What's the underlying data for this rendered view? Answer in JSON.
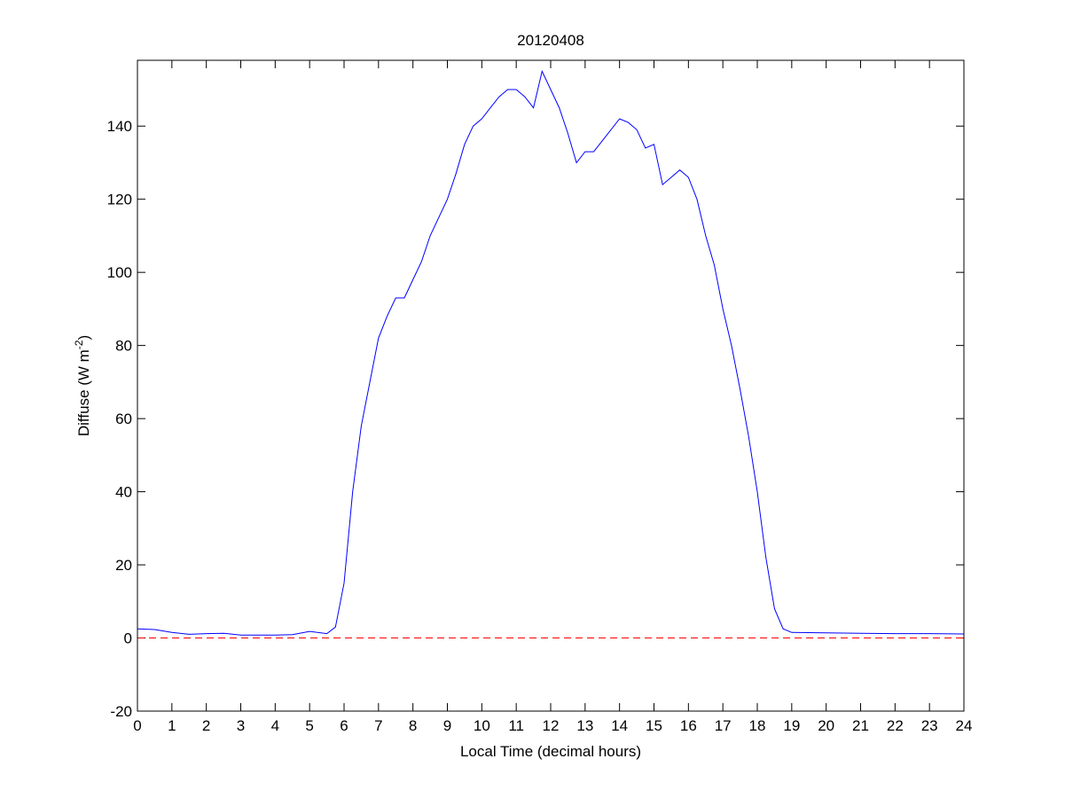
{
  "chart_data": {
    "type": "line",
    "title": "20120408",
    "xlabel": "Local Time (decimal hours)",
    "ylabel_main": "Diffuse (W m",
    "ylabel_sup": "-2",
    "ylabel_end": ")",
    "xlim": [
      0,
      24
    ],
    "ylim": [
      -20,
      158
    ],
    "xticks": [
      0,
      1,
      2,
      3,
      4,
      5,
      6,
      7,
      8,
      9,
      10,
      11,
      12,
      13,
      14,
      15,
      16,
      17,
      18,
      19,
      20,
      21,
      22,
      23,
      24
    ],
    "yticks": [
      -20,
      0,
      20,
      40,
      60,
      80,
      100,
      120,
      140
    ],
    "grid": false,
    "series": [
      {
        "color": "#0000ff",
        "x": [
          0,
          0.5,
          1,
          1.5,
          2,
          2.5,
          3,
          3.5,
          4,
          4.5,
          5,
          5.5,
          5.75,
          6,
          6.25,
          6.5,
          6.75,
          7,
          7.25,
          7.5,
          7.75,
          8,
          8.25,
          8.5,
          8.75,
          9,
          9.25,
          9.5,
          9.75,
          10,
          10.25,
          10.5,
          10.75,
          11,
          11.25,
          11.5,
          11.75,
          12,
          12.25,
          12.5,
          12.75,
          13,
          13.25,
          13.5,
          13.75,
          14,
          14.25,
          14.5,
          14.75,
          15,
          15.25,
          15.5,
          15.75,
          16,
          16.25,
          16.5,
          16.75,
          17,
          17.25,
          17.5,
          17.75,
          18,
          18.25,
          18.5,
          18.75,
          19,
          20,
          21,
          22,
          23,
          24
        ],
        "y": [
          2.5,
          2.3,
          1.5,
          1,
          1.2,
          1.3,
          0.8,
          0.8,
          0.8,
          0.9,
          1.8,
          1.2,
          3,
          15,
          40,
          58,
          70,
          82,
          88,
          93,
          93,
          98,
          103,
          110,
          115,
          120,
          127,
          135,
          140,
          142,
          145,
          148,
          150,
          150,
          148,
          145,
          155,
          150,
          145,
          138,
          130,
          133,
          133,
          136,
          139,
          142,
          141,
          139,
          134,
          135,
          124,
          126,
          128,
          126,
          120,
          110,
          102,
          90,
          80,
          68,
          55,
          40,
          22,
          8,
          2.5,
          1.5,
          1.4,
          1.3,
          1.2,
          1.2,
          1.1
        ]
      }
    ],
    "reference_line": {
      "y": 0,
      "color": "#ff0000",
      "style": "dashed"
    }
  }
}
